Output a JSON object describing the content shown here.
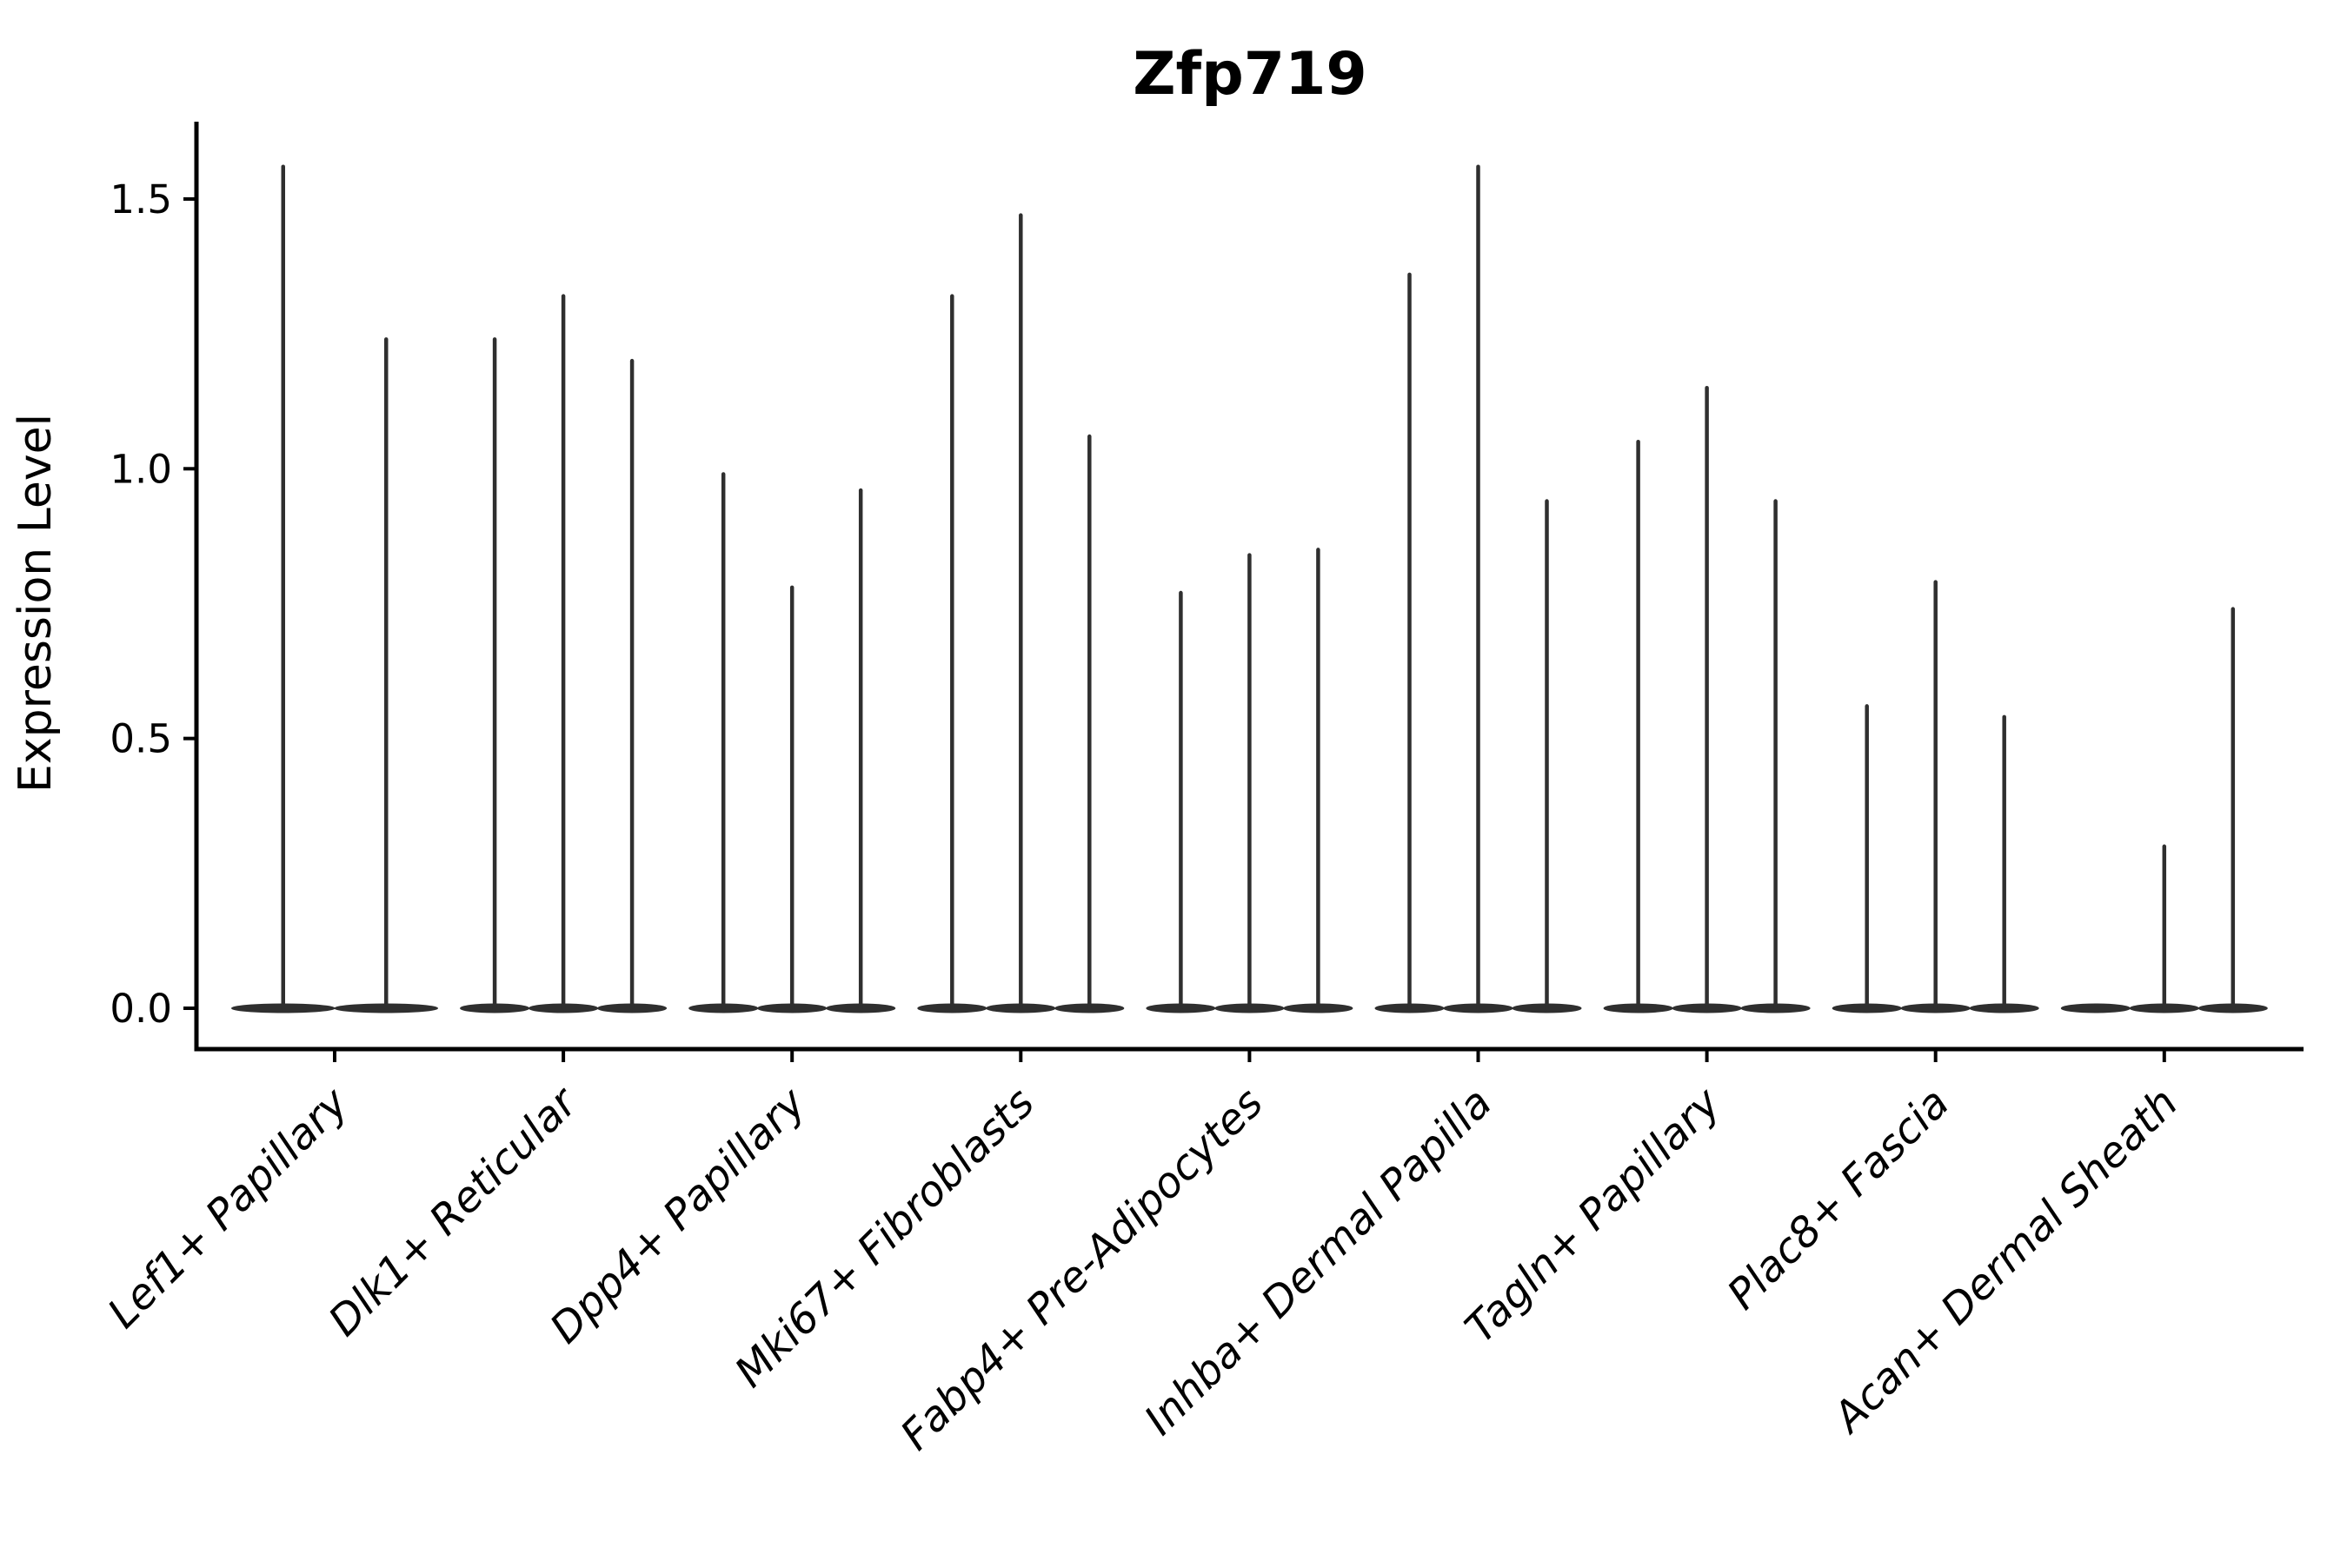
{
  "chart_data": {
    "type": "violin",
    "title": "Zfp719",
    "ylabel": "Expression Level",
    "xlabel": "",
    "categories": [
      "Lef1+ Papillary",
      "Dlk1+ Reticular",
      "Dpp4+ Papillary",
      "Mki67+ Fibroblasts",
      "Fabp4+ Pre-Adipocytes",
      "Inhba+ Dermal Papilla",
      "Tagln+ Papillary",
      "Plac8+ Fascia",
      "Acan+ Dermal Sheath"
    ],
    "violin_max_values_per_category": [
      [
        1.56,
        1.24
      ],
      [
        1.24,
        1.32,
        1.2
      ],
      [
        0.99,
        0.78,
        0.96
      ],
      [
        1.32,
        1.47,
        1.06
      ],
      [
        0.77,
        0.84,
        0.85
      ],
      [
        1.36,
        1.56,
        0.94
      ],
      [
        1.05,
        1.15,
        0.94
      ],
      [
        0.56,
        0.79,
        0.54
      ],
      [
        0.0,
        0.3,
        0.74
      ]
    ],
    "violin_shape_note": "Each violin's density mass sits at expression 0 (flat lens at baseline) with a hair-thin spike rising to the listed max value; a max of 0.0 means a flat violin with no spike.",
    "yticks": [
      0.0,
      0.5,
      1.0,
      1.5
    ],
    "ytick_labels": [
      "0.0",
      "0.5",
      "1.0",
      "1.5"
    ],
    "ylim": [
      -0.075,
      1.64
    ],
    "grid": false,
    "legend": null,
    "x_tick_label_rotation_deg": 45,
    "x_tick_label_style": "italic",
    "violin_color": "#2f2f2f",
    "axis_color": "#000000",
    "background_color": "#ffffff"
  }
}
